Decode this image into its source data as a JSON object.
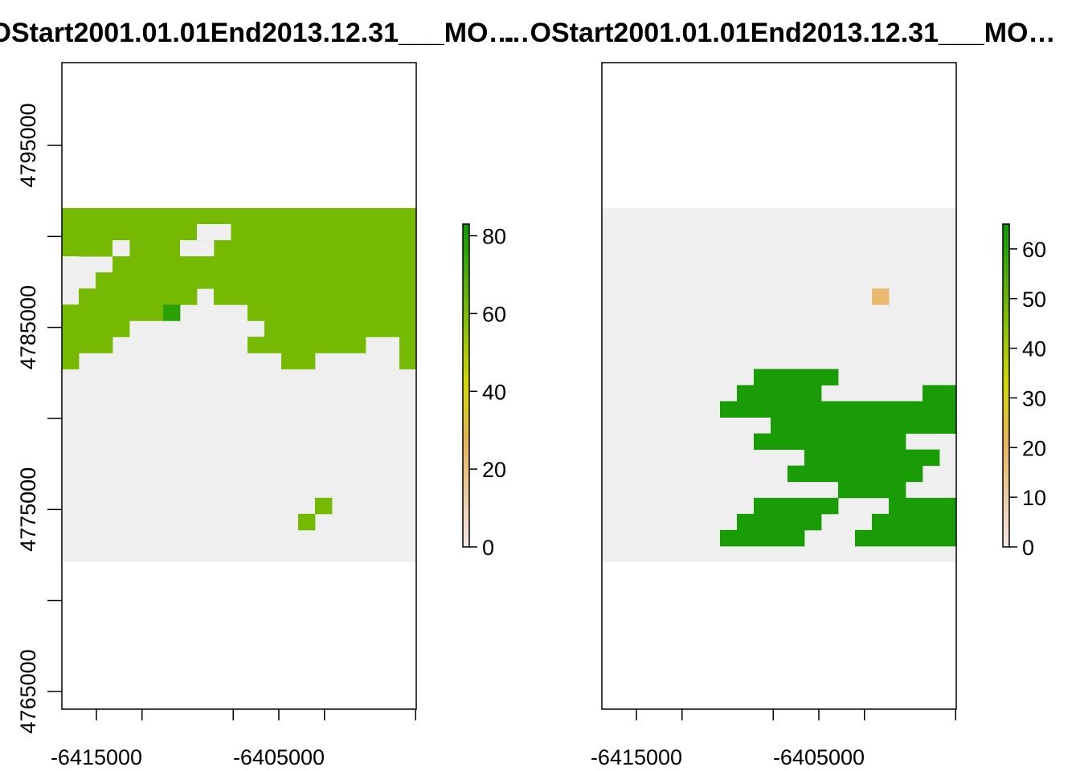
{
  "chart_data": [
    {
      "type": "heatmap",
      "title": "…OStart2001.01.01End2013.12.31___MO…",
      "x_ticks": [
        -6417500,
        -6412500,
        -6407500,
        -6402500,
        -6397500
      ],
      "x_tick_labels": [
        "-6415000",
        "-6405000"
      ],
      "x_tick_label_values": [
        -6415000,
        -6405000
      ],
      "y_ticks": [
        4765000,
        4770000,
        4775000,
        4780000,
        4785000,
        4790000,
        4795000
      ],
      "y_tick_labels": [
        "4765000",
        "4775000",
        "4785000",
        "4795000"
      ],
      "y_tick_label_values": [
        4765000,
        4775000,
        4785000,
        4795000
      ],
      "legend": {
        "min": 0,
        "max": 83,
        "ticks": [
          0,
          20,
          40,
          60,
          80
        ],
        "tick_labels": [
          "0",
          "20",
          "40",
          "60",
          "80"
        ],
        "placement": "right"
      },
      "cells": {
        "cols": 21,
        "rows": 22,
        "background": "#EFEFEF",
        "low_color": "#F3E5E4",
        "mid_color": "#E8B15A",
        "high_color": "#139A06"
      },
      "patches": [
        {
          "c": 0,
          "r": 0,
          "w": 21,
          "h": 2,
          "v": 62
        },
        {
          "c": 8,
          "r": 1,
          "w": 2,
          "h": 1,
          "v": 0
        },
        {
          "c": 0,
          "r": 2,
          "w": 21,
          "h": 1,
          "v": 62
        },
        {
          "c": 3,
          "r": 2,
          "w": 1,
          "h": 1,
          "v": 0
        },
        {
          "c": 7,
          "r": 2,
          "w": 2,
          "h": 1,
          "v": 0
        },
        {
          "c": 0,
          "r": 3,
          "w": 1,
          "h": 1,
          "v": 0
        },
        {
          "c": 3,
          "r": 3,
          "w": 18,
          "h": 1,
          "v": 62
        },
        {
          "c": 2,
          "r": 4,
          "w": 19,
          "h": 1,
          "v": 62
        },
        {
          "c": 1,
          "r": 5,
          "w": 7,
          "h": 1,
          "v": 62
        },
        {
          "c": 9,
          "r": 5,
          "w": 12,
          "h": 1,
          "v": 62
        },
        {
          "c": 0,
          "r": 6,
          "w": 6,
          "h": 1,
          "v": 62
        },
        {
          "c": 6,
          "r": 6,
          "w": 1,
          "h": 1,
          "v": 78
        },
        {
          "c": 11,
          "r": 6,
          "w": 10,
          "h": 1,
          "v": 62
        },
        {
          "c": 0,
          "r": 7,
          "w": 4,
          "h": 1,
          "v": 62
        },
        {
          "c": 12,
          "r": 7,
          "w": 9,
          "h": 1,
          "v": 62
        },
        {
          "c": 0,
          "r": 8,
          "w": 3,
          "h": 1,
          "v": 62
        },
        {
          "c": 11,
          "r": 8,
          "w": 7,
          "h": 1,
          "v": 62
        },
        {
          "c": 20,
          "r": 8,
          "w": 1,
          "h": 1,
          "v": 62
        },
        {
          "c": 0,
          "r": 9,
          "w": 1,
          "h": 1,
          "v": 62
        },
        {
          "c": 13,
          "r": 9,
          "w": 2,
          "h": 1,
          "v": 62
        },
        {
          "c": 20,
          "r": 9,
          "w": 1,
          "h": 1,
          "v": 62
        },
        {
          "c": 15,
          "r": 18,
          "w": 1,
          "h": 1,
          "v": 62
        },
        {
          "c": 14,
          "r": 19,
          "w": 1,
          "h": 1,
          "v": 62
        }
      ]
    },
    {
      "type": "heatmap",
      "title": "…OStart2001.01.01End2013.12.31___MO…",
      "x_ticks": [
        -6417500,
        -6412500,
        -6407500,
        -6402500,
        -6397500
      ],
      "x_tick_labels": [
        "-6415000",
        "-6405000"
      ],
      "x_tick_label_values": [
        -6415000,
        -6405000
      ],
      "legend": {
        "min": 0,
        "max": 65,
        "ticks": [
          0,
          10,
          20,
          30,
          40,
          50,
          60
        ],
        "tick_labels": [
          "0",
          "10",
          "20",
          "30",
          "40",
          "50",
          "60"
        ],
        "placement": "right"
      },
      "cells": {
        "cols": 21,
        "rows": 22,
        "background": "#EFEFEF",
        "low_color": "#F3E5E4",
        "mid_color": "#E8B15A",
        "high_color": "#139A06"
      },
      "patches": [
        {
          "c": 16,
          "r": 5,
          "w": 1,
          "h": 1,
          "v": 18
        },
        {
          "c": 9,
          "r": 10,
          "w": 5,
          "h": 1,
          "v": 64
        },
        {
          "c": 8,
          "r": 11,
          "w": 5,
          "h": 1,
          "v": 64
        },
        {
          "c": 19,
          "r": 11,
          "w": 2,
          "h": 1,
          "v": 64
        },
        {
          "c": 7,
          "r": 12,
          "w": 14,
          "h": 1,
          "v": 64
        },
        {
          "c": 10,
          "r": 13,
          "w": 11,
          "h": 1,
          "v": 64
        },
        {
          "c": 9,
          "r": 14,
          "w": 9,
          "h": 1,
          "v": 64
        },
        {
          "c": 12,
          "r": 15,
          "w": 8,
          "h": 1,
          "v": 64
        },
        {
          "c": 11,
          "r": 16,
          "w": 8,
          "h": 1,
          "v": 64
        },
        {
          "c": 14,
          "r": 17,
          "w": 4,
          "h": 1,
          "v": 64
        },
        {
          "c": 9,
          "r": 18,
          "w": 5,
          "h": 1,
          "v": 64
        },
        {
          "c": 17,
          "r": 18,
          "w": 4,
          "h": 1,
          "v": 64
        },
        {
          "c": 8,
          "r": 19,
          "w": 5,
          "h": 1,
          "v": 64
        },
        {
          "c": 16,
          "r": 19,
          "w": 5,
          "h": 1,
          "v": 64
        },
        {
          "c": 7,
          "r": 20,
          "w": 5,
          "h": 1,
          "v": 64
        },
        {
          "c": 15,
          "r": 20,
          "w": 6,
          "h": 1,
          "v": 64
        }
      ]
    }
  ]
}
